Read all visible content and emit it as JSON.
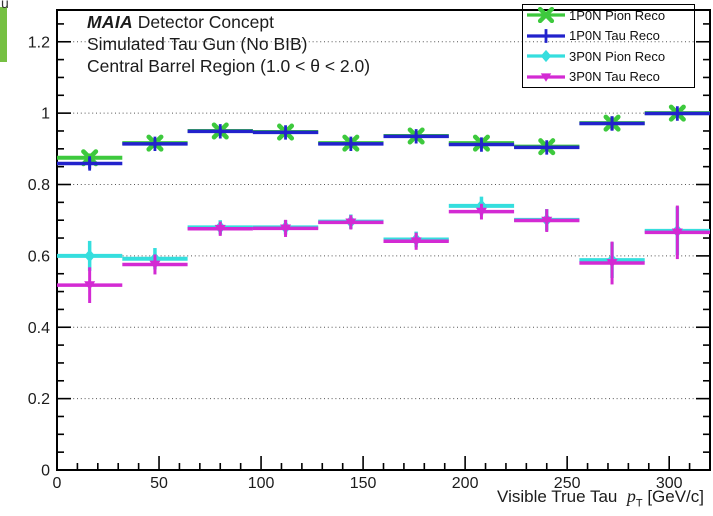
{
  "decorations": {
    "left_bar_color": "#76c043",
    "corner_artifact_text": "u"
  },
  "plot": {
    "title_line1_brand": "MAIA",
    "title_line1_rest": " Detector Concept",
    "title_line2": "Simulated Tau Gun (No BIB)",
    "title_line3": "Central Barrel Region (1.0 < θ < 2.0)",
    "x_axis_title_prefix": "Visible True Tau",
    "x_axis_title_symbol": "p",
    "x_axis_title_sub": "T",
    "x_axis_title_suffix": "[GeV/c]"
  },
  "chart_data": {
    "type": "scatter",
    "title": "",
    "xlabel": "Visible True Tau pT [GeV/c]",
    "ylabel": "",
    "xlim": [
      0,
      320
    ],
    "ylim": [
      0,
      1.289
    ],
    "x_major_ticks": [
      0,
      50,
      100,
      150,
      200,
      250,
      300
    ],
    "x_minor_step": 10,
    "y_major_ticks": [
      0,
      0.2,
      0.4,
      0.6,
      0.8,
      1.0,
      1.2
    ],
    "y_minor_step": 0.05,
    "grid": "horizontal-dotted",
    "grid_color": "#555555",
    "x": [
      16,
      48,
      80,
      112,
      144,
      176,
      208,
      240,
      272,
      304
    ],
    "x_err": 16,
    "series": [
      {
        "name": "1P0N Pion Reco",
        "color": "#3dc93d",
        "marker": "x-cross",
        "marker_size": 6.2,
        "line_width": 4,
        "values": [
          0.875,
          0.916,
          0.95,
          0.947,
          0.916,
          0.936,
          0.916,
          0.906,
          0.972,
          1.0
        ],
        "y_err": [
          0.012,
          0.008,
          0.006,
          0.006,
          0.008,
          0.007,
          0.009,
          0.01,
          0.018,
          0.008
        ]
      },
      {
        "name": "1P0N Tau Reco",
        "color": "#2222cc",
        "marker": "plus",
        "marker_size": 6.0,
        "line_width": 3.5,
        "values": [
          0.859,
          0.914,
          0.949,
          0.946,
          0.914,
          0.935,
          0.912,
          0.904,
          0.971,
          0.999
        ],
        "y_err": [
          0.015,
          0.01,
          0.008,
          0.008,
          0.01,
          0.009,
          0.011,
          0.011,
          0.02,
          0.009
        ]
      },
      {
        "name": "3P0N Pion Reco",
        "color": "#35dede",
        "marker": "diamond",
        "marker_size": 6.5,
        "line_width": 4,
        "values": [
          0.6,
          0.592,
          0.68,
          0.68,
          0.696,
          0.646,
          0.74,
          0.701,
          0.588,
          0.67
        ],
        "y_err": [
          0.042,
          0.03,
          0.02,
          0.02,
          0.02,
          0.022,
          0.026,
          0.03,
          0.05,
          0.068
        ]
      },
      {
        "name": "3P0N Tau Reco",
        "color": "#d32ad3",
        "marker": "triangle-down",
        "marker_size": 5.5,
        "line_width": 3.5,
        "values": [
          0.518,
          0.576,
          0.676,
          0.677,
          0.694,
          0.641,
          0.724,
          0.699,
          0.58,
          0.666
        ],
        "y_err": [
          0.05,
          0.028,
          0.02,
          0.024,
          0.02,
          0.024,
          0.022,
          0.032,
          0.06,
          0.075
        ]
      }
    ]
  }
}
